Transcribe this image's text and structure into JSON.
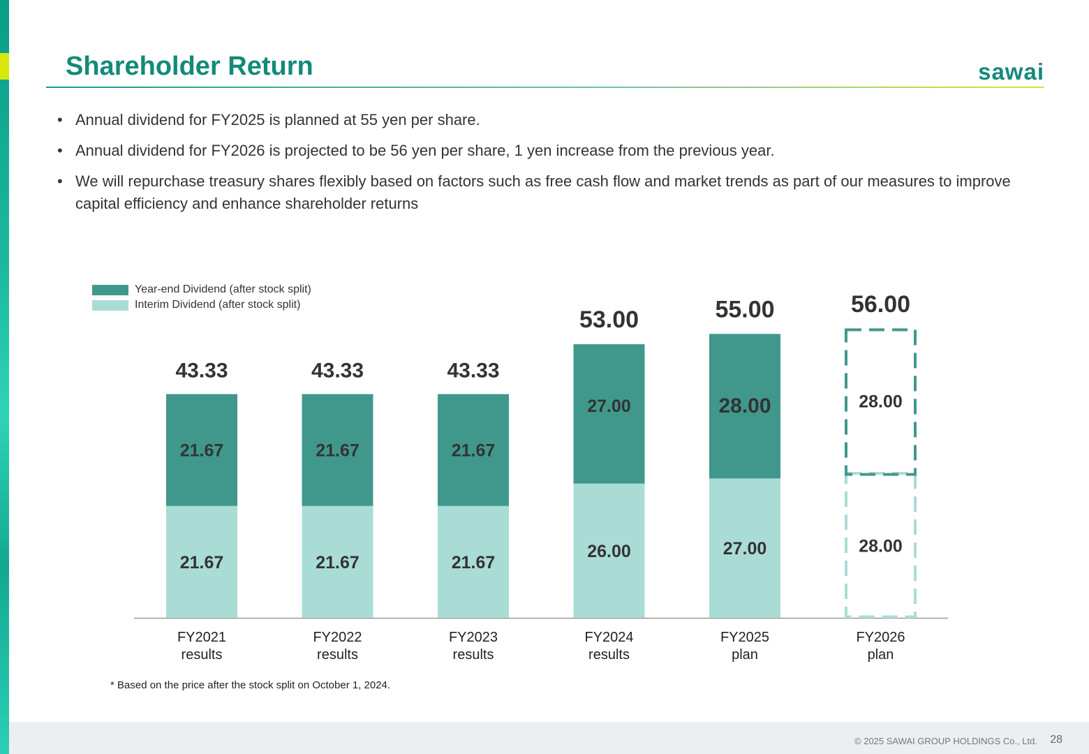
{
  "header": {
    "title": "Shareholder Return",
    "logo_text": "sawai"
  },
  "bullets": [
    "Annual dividend for FY2025 is planned at 55 yen per share.",
    "Annual dividend for FY2026 is projected to be 56 yen per share, 1 yen increase from the previous year.",
    "We will repurchase treasury shares flexibly based on factors such as free cash flow and market trends as part of our measures to improve capital efficiency and enhance shareholder returns"
  ],
  "colors": {
    "brand": "#138a7a",
    "year_end": "#40988c",
    "interim": "#aadcd6",
    "axis": "#9a9a9a"
  },
  "chart_data": {
    "type": "bar",
    "stacked": true,
    "categories": [
      "FY2021\nresults",
      "FY2022\nresults",
      "FY2023\nresults",
      "FY2024\nresults",
      "FY2025\nplan",
      "FY2026\nplan"
    ],
    "series": [
      {
        "name": "Interim Dividend (after stock split)",
        "values": [
          21.67,
          21.67,
          21.67,
          26.0,
          27.0,
          28.0
        ],
        "labels": [
          "21.67",
          "21.67",
          "21.67",
          "26.00",
          "27.00",
          "28.00"
        ]
      },
      {
        "name": "Year-end Dividend (after stock split)",
        "values": [
          21.67,
          21.67,
          21.67,
          27.0,
          28.0,
          28.0
        ],
        "labels": [
          "21.67",
          "21.67",
          "21.67",
          "27.00",
          "28.00",
          "28.00"
        ]
      }
    ],
    "totals": [
      "43.33",
      "43.33",
      "43.33",
      "53.00",
      "55.00",
      "56.00"
    ],
    "forecast_categories": [
      5
    ],
    "legend_position": "top-left",
    "grid": false
  },
  "footnote": "* Based on the price after the stock split on October 1, 2024.",
  "footer": {
    "copyright": "© 2025 SAWAI GROUP HOLDINGS Co., Ltd.",
    "page_number": "28"
  }
}
